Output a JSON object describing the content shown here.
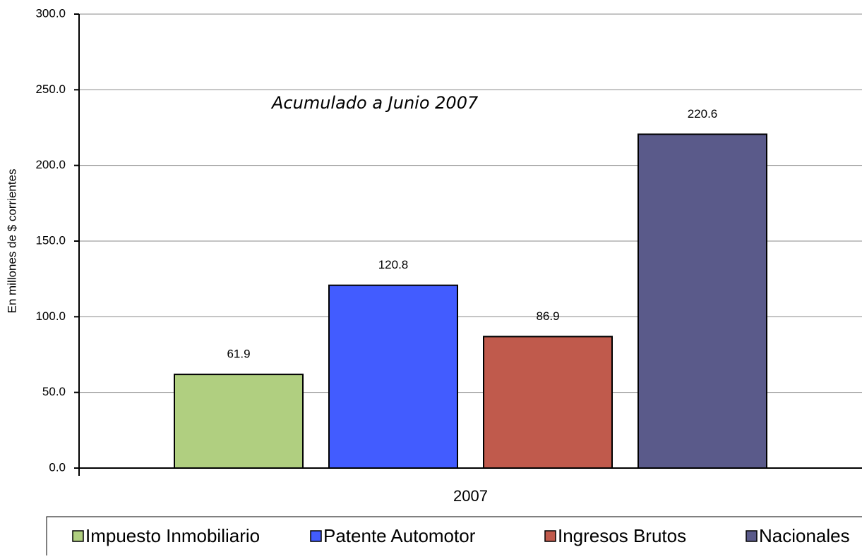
{
  "chart_data": {
    "type": "bar",
    "ylabel": "En millones de $ corrientes",
    "annotation": "Acumulado a Junio 2007",
    "categories": [
      "2007"
    ],
    "series": [
      {
        "name": "Impuesto Inmobiliario",
        "color": "#b0cf80",
        "values": [
          61.9
        ]
      },
      {
        "name": "Patente Automotor",
        "color": "#425cff",
        "values": [
          120.8
        ]
      },
      {
        "name": "Ingresos Brutos",
        "color": "#c05a4c",
        "values": [
          86.9
        ]
      },
      {
        "name": "Nacionales",
        "color": "#5a5a8a",
        "values": [
          220.6
        ]
      }
    ],
    "ylim": [
      0,
      300
    ],
    "yticks": [
      {
        "value": 0,
        "label": "0.0"
      },
      {
        "value": 50,
        "label": "50.0"
      },
      {
        "value": 100,
        "label": "100.0"
      },
      {
        "value": 150,
        "label": "150.0"
      },
      {
        "value": 200,
        "label": "200.0"
      },
      {
        "value": 250,
        "label": "250.0"
      },
      {
        "value": 300,
        "label": "300.0"
      }
    ],
    "grid": true,
    "legend": "bottom"
  }
}
